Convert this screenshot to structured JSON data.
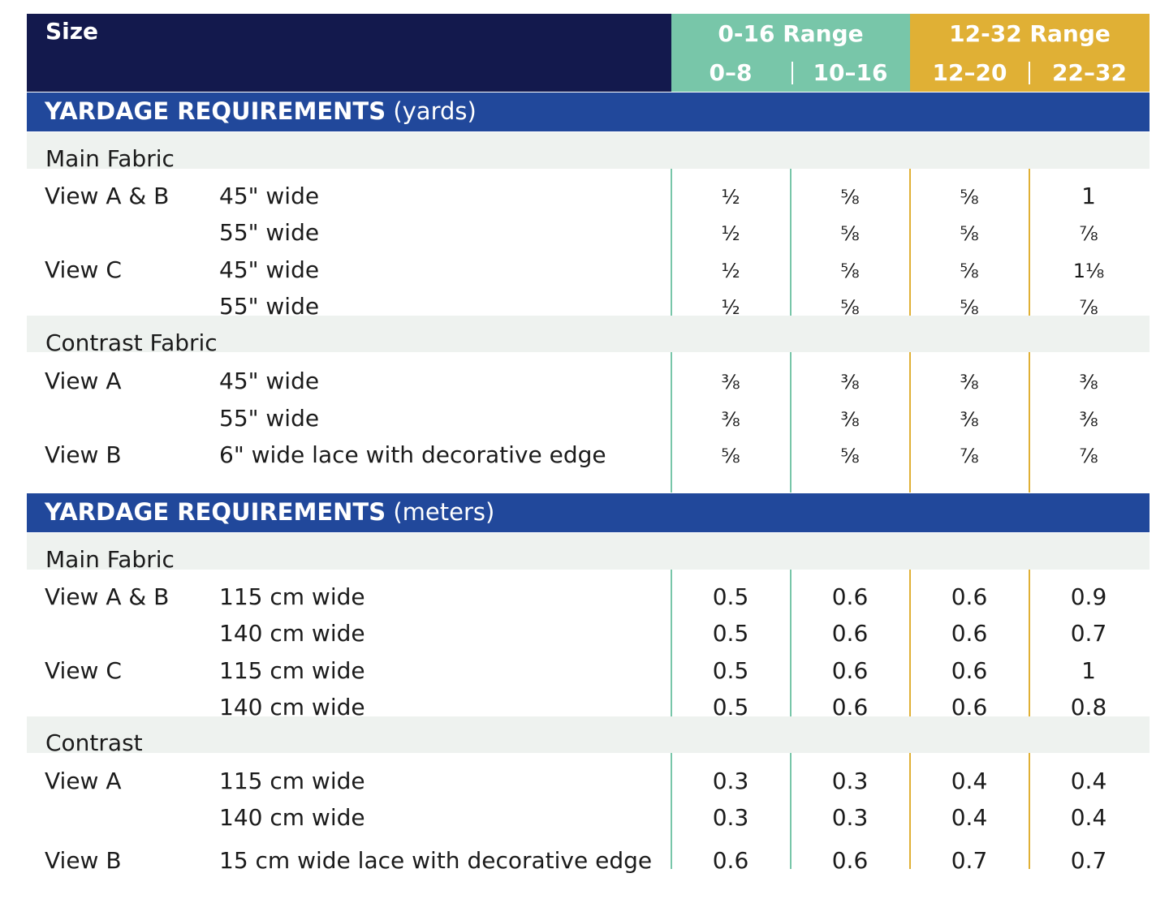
{
  "header": {
    "size_label": "Size",
    "range_1": "0-16 Range",
    "range_2": "12-32 Range",
    "sizes": [
      "0–8",
      "10–16",
      "12–20",
      "22–32"
    ],
    "colors": {
      "navy": "#13194d",
      "teal": "#78c6a9",
      "gold": "#e0b035",
      "section_blue": "#21489b"
    }
  },
  "yards": {
    "title_bold": "YARDAGE REQUIREMENTS",
    "title_unit": "(yards)",
    "group_main": "Main Fabric",
    "group_contrast": "Contrast Fabric",
    "rows": [
      {
        "view": "View A & B",
        "width": "45\" wide",
        "values": [
          "½",
          "⅝",
          "⅝",
          "1"
        ]
      },
      {
        "view": "",
        "width": "55\" wide",
        "values": [
          "½",
          "⅝",
          "⅝",
          "⅞"
        ]
      },
      {
        "view": "View C",
        "width": "45\" wide",
        "values": [
          "½",
          "⅝",
          "⅝",
          "1⅛"
        ]
      },
      {
        "view": "",
        "width": "55\" wide",
        "values": [
          "½",
          "⅝",
          "⅝",
          "⅞"
        ]
      },
      {
        "view": "View A",
        "width": "45\" wide",
        "values": [
          "⅜",
          "⅜",
          "⅜",
          "⅜"
        ]
      },
      {
        "view": "",
        "width": "55\" wide",
        "values": [
          "⅜",
          "⅜",
          "⅜",
          "⅜"
        ]
      },
      {
        "view": "View B",
        "width": "6\" wide lace with decorative edge",
        "values": [
          "⅝",
          "⅝",
          "⅞",
          "⅞"
        ]
      }
    ]
  },
  "meters": {
    "title_bold": "YARDAGE REQUIREMENTS",
    "title_unit": "(meters)",
    "group_main": "Main Fabric",
    "group_contrast": "Contrast",
    "rows": [
      {
        "view": "View A & B",
        "width": "115 cm wide",
        "values": [
          "0.5",
          "0.6",
          "0.6",
          "0.9"
        ]
      },
      {
        "view": "",
        "width": "140 cm wide",
        "values": [
          "0.5",
          "0.6",
          "0.6",
          "0.7"
        ]
      },
      {
        "view": "View C",
        "width": "115 cm wide",
        "values": [
          "0.5",
          "0.6",
          "0.6",
          "1"
        ]
      },
      {
        "view": "",
        "width": "140 cm wide",
        "values": [
          "0.5",
          "0.6",
          "0.6",
          "0.8"
        ]
      },
      {
        "view": "View A",
        "width": "115 cm wide",
        "values": [
          "0.3",
          "0.3",
          "0.4",
          "0.4"
        ]
      },
      {
        "view": "",
        "width": "140 cm wide",
        "values": [
          "0.3",
          "0.3",
          "0.4",
          "0.4"
        ]
      },
      {
        "view": "View B",
        "width": "15 cm wide lace with decorative edge",
        "values": [
          "0.6",
          "0.6",
          "0.7",
          "0.7"
        ]
      }
    ]
  }
}
